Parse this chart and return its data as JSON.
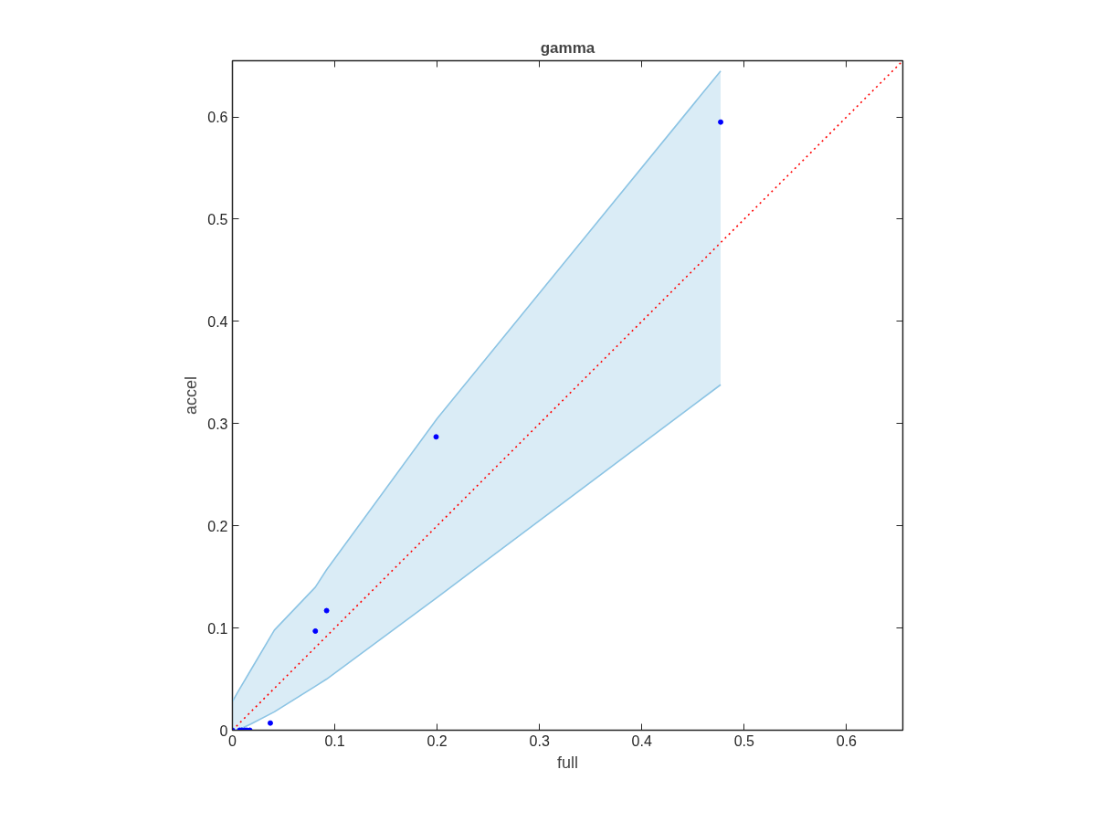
{
  "chart_data": {
    "type": "scatter",
    "title": "gamma",
    "xlabel": "full",
    "ylabel": "accel",
    "xlim": [
      0,
      0.655
    ],
    "ylim": [
      0,
      0.655
    ],
    "xticks": [
      0,
      0.1,
      0.2,
      0.3,
      0.4,
      0.5,
      0.6
    ],
    "yticks": [
      0,
      0.1,
      0.2,
      0.3,
      0.4,
      0.5,
      0.6
    ],
    "grid": false,
    "marker": "circle",
    "series": [
      {
        "type": "line",
        "marker": "none",
        "color": "#8cc4e4",
        "x": [
          0,
          0.005,
          0.018,
          0.041,
          0.081,
          0.092,
          0.2,
          0.477
        ],
        "values": [
          0.028,
          0.037,
          0.059,
          0.098,
          0.14,
          0.157,
          0.305,
          0.645
        ],
        "upper": [
          0.028,
          0.037,
          0.059,
          0.098,
          0.14,
          0.157,
          0.305,
          0.645
        ],
        "lower": [
          0,
          0,
          0.006,
          0.018,
          0.043,
          0.05,
          0.13,
          0.338
        ]
      },
      {
        "type": "line",
        "marker": "none",
        "color": "#8cc4e4",
        "x": [
          0,
          0.005,
          0.018,
          0.041,
          0.081,
          0.092,
          0.2,
          0.477
        ],
        "values": [
          0,
          0,
          0.006,
          0.018,
          0.043,
          0.05,
          0.13,
          0.338
        ]
      },
      {
        "type": "line",
        "marker": "none",
        "color": "#ff0000",
        "line_style": "dotted",
        "x": [
          0,
          0.655
        ],
        "values": [
          0,
          0.655
        ]
      },
      {
        "color": "#0000ff",
        "x": [
          0,
          0.007,
          0.009,
          0.012,
          0.014,
          0.017,
          0.037,
          0.081,
          0.092,
          0.199,
          0.477
        ],
        "values": [
          0,
          0,
          0,
          0,
          0,
          0,
          0.007,
          0.097,
          0.117,
          0.287,
          0.595
        ]
      }
    ]
  }
}
